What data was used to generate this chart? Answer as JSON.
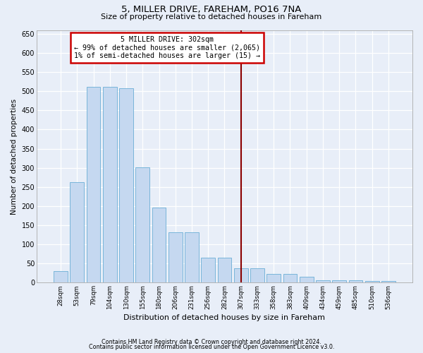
{
  "title1": "5, MILLER DRIVE, FAREHAM, PO16 7NA",
  "title2": "Size of property relative to detached houses in Fareham",
  "xlabel": "Distribution of detached houses by size in Fareham",
  "ylabel": "Number of detached properties",
  "bar_labels": [
    "28sqm",
    "53sqm",
    "79sqm",
    "104sqm",
    "130sqm",
    "155sqm",
    "180sqm",
    "206sqm",
    "231sqm",
    "256sqm",
    "282sqm",
    "307sqm",
    "333sqm",
    "358sqm",
    "383sqm",
    "409sqm",
    "434sqm",
    "459sqm",
    "485sqm",
    "510sqm",
    "536sqm"
  ],
  "bar_values": [
    30,
    263,
    511,
    511,
    507,
    302,
    196,
    132,
    132,
    65,
    65,
    38,
    38,
    22,
    22,
    15,
    7,
    6,
    6,
    5,
    5
  ],
  "bar_color": "#c5d8f0",
  "bar_edge_color": "#6aaed6",
  "background_color": "#e8eef8",
  "grid_color": "#ffffff",
  "vline_index": 11,
  "vline_color": "#8b0000",
  "annotation_title": "5 MILLER DRIVE: 302sqm",
  "annotation_line1": "← 99% of detached houses are smaller (2,065)",
  "annotation_line2": "1% of semi-detached houses are larger (15) →",
  "annotation_box_color": "#ffffff",
  "annotation_border_color": "#cc0000",
  "ylim": [
    0,
    660
  ],
  "yticks": [
    0,
    50,
    100,
    150,
    200,
    250,
    300,
    350,
    400,
    450,
    500,
    550,
    600,
    650
  ],
  "footer1": "Contains HM Land Registry data © Crown copyright and database right 2024.",
  "footer2": "Contains public sector information licensed under the Open Government Licence v3.0."
}
